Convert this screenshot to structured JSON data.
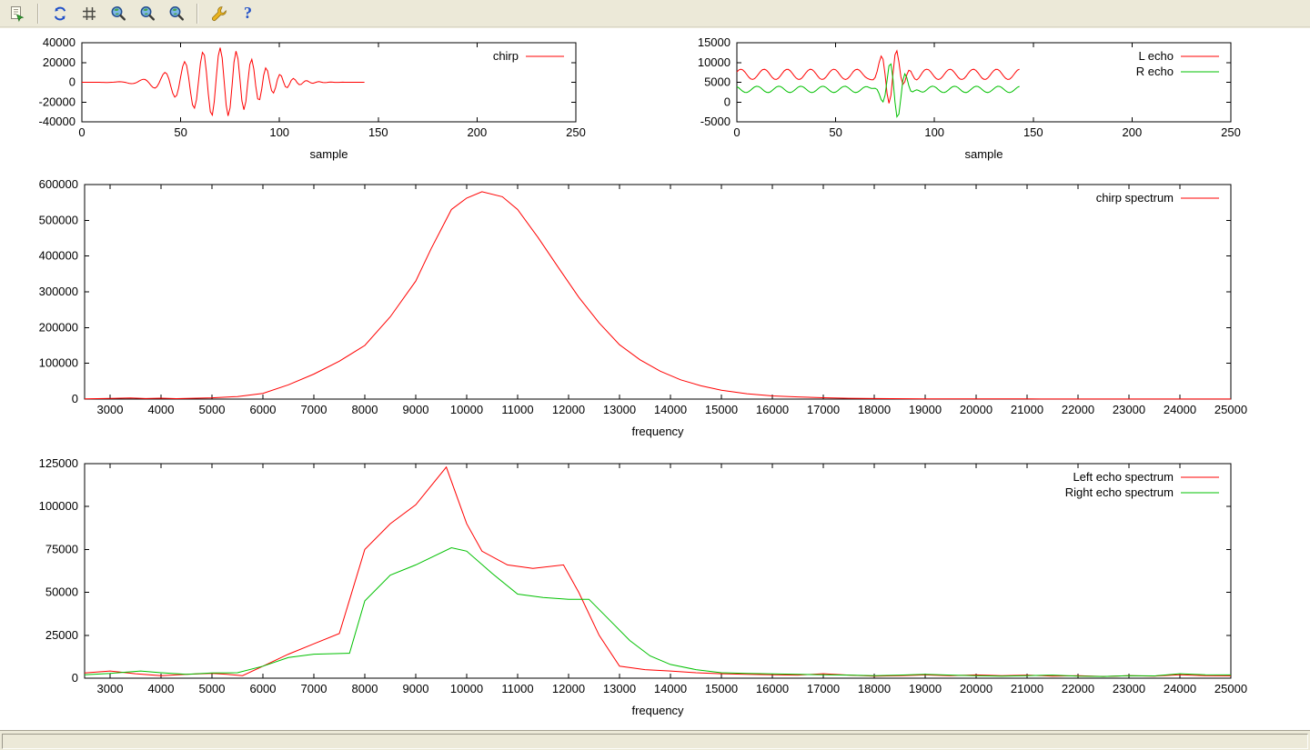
{
  "window": {
    "chrome_color": "#ece9d8",
    "plot_background": "#ffffff"
  },
  "toolbar": {
    "buttons": [
      {
        "icon": "copy-plot-icon"
      },
      {
        "icon": "replot-icon"
      },
      {
        "icon": "toggle-grid-icon"
      },
      {
        "icon": "zoom-previous-icon"
      },
      {
        "icon": "zoom-next-icon"
      },
      {
        "icon": "autoscale-icon"
      },
      {
        "icon": "configure-icon"
      },
      {
        "icon": "help-icon"
      }
    ]
  },
  "status_bar": {
    "text": ""
  },
  "chart_data": [
    {
      "id": "chirp-signal",
      "type": "line",
      "title": "",
      "xlabel": "sample",
      "ylabel": "",
      "xlim": [
        0,
        250
      ],
      "ylim": [
        -40000,
        40000
      ],
      "xticks": [
        0,
        50,
        100,
        150,
        200,
        250
      ],
      "yticks": [
        -40000,
        -20000,
        0,
        20000,
        40000
      ],
      "grid": false,
      "legend_position": "top-right-inside",
      "series": [
        {
          "name": "chirp",
          "color": "#ff0000",
          "generator": {
            "kind": "chirp",
            "n": 143,
            "amplitude": 35000,
            "center": 70,
            "width": 25,
            "freq_start": 0.06,
            "freq_end": 0.18
          }
        }
      ]
    },
    {
      "id": "echo-signals",
      "type": "line",
      "title": "",
      "xlabel": "sample",
      "ylabel": "",
      "xlim": [
        0,
        250
      ],
      "ylim": [
        -5000,
        15000
      ],
      "xticks": [
        0,
        50,
        100,
        150,
        200,
        250
      ],
      "yticks": [
        -5000,
        0,
        5000,
        10000,
        15000
      ],
      "grid": false,
      "legend_position": "top-right-inside",
      "series": [
        {
          "name": "L echo",
          "color": "#ff0000",
          "generator": {
            "kind": "echo",
            "n": 143,
            "base": 7000,
            "ripple_amp": 1300,
            "ripple_freq": 0.085,
            "ripple_phase": 0.5,
            "burst_amp": 7000,
            "burst_center": 79,
            "burst_width": 7,
            "burst_freq": 0.13,
            "burst_phase": 0.2
          }
        },
        {
          "name": "R echo",
          "color": "#00c000",
          "generator": {
            "kind": "echo",
            "n": 143,
            "base": 3200,
            "ripple_amp": 800,
            "ripple_freq": 0.09,
            "ripple_phase": 2.1,
            "burst_amp": 6800,
            "burst_center": 80,
            "burst_width": 7,
            "burst_freq": 0.13,
            "burst_phase": 3.6
          }
        }
      ]
    },
    {
      "id": "chirp-spectrum",
      "type": "line",
      "title": "",
      "xlabel": "frequency",
      "ylabel": "",
      "xlim": [
        2500,
        25000
      ],
      "ylim": [
        0,
        600000
      ],
      "xticks": [
        3000,
        4000,
        5000,
        6000,
        7000,
        8000,
        9000,
        10000,
        11000,
        12000,
        13000,
        14000,
        15000,
        16000,
        17000,
        18000,
        19000,
        20000,
        21000,
        22000,
        23000,
        24000,
        25000
      ],
      "yticks": [
        0,
        100000,
        200000,
        300000,
        400000,
        500000,
        600000
      ],
      "grid": false,
      "legend_position": "top-right-inside",
      "series": [
        {
          "name": "chirp spectrum",
          "color": "#ff0000",
          "points": {
            "x": [
              2500,
              3000,
              3400,
              3700,
              4000,
              4300,
              4600,
              5000,
              5500,
              6000,
              6500,
              7000,
              7500,
              8000,
              8500,
              9000,
              9300,
              9700,
              10000,
              10300,
              10700,
              11000,
              11400,
              11800,
              12200,
              12600,
              13000,
              13400,
              13800,
              14200,
              14600,
              15000,
              15500,
              16000,
              16500,
              17000,
              17500,
              18000,
              19000,
              20000,
              21000,
              22000,
              23000,
              24000,
              25000
            ],
            "y": [
              800,
              1800,
              3200,
              1600,
              2600,
              1200,
              2200,
              3500,
              7000,
              16000,
              40000,
              70000,
              106000,
              150000,
              230000,
              330000,
              420000,
              530000,
              562000,
              580000,
              566000,
              530000,
              452000,
              368000,
              285000,
              213000,
              152000,
              110000,
              78000,
              54000,
              37000,
              25000,
              15000,
              9000,
              6000,
              3800,
              2400,
              1500,
              800,
              500,
              400,
              350,
              300,
              250,
              200
            ]
          }
        }
      ]
    },
    {
      "id": "echo-spectra",
      "type": "line",
      "title": "",
      "xlabel": "frequency",
      "ylabel": "",
      "xlim": [
        2500,
        25000
      ],
      "ylim": [
        0,
        125000
      ],
      "xticks": [
        3000,
        4000,
        5000,
        6000,
        7000,
        8000,
        9000,
        10000,
        11000,
        12000,
        13000,
        14000,
        15000,
        16000,
        17000,
        18000,
        19000,
        20000,
        21000,
        22000,
        23000,
        24000,
        25000
      ],
      "yticks": [
        0,
        25000,
        50000,
        75000,
        100000,
        125000
      ],
      "grid": false,
      "legend_position": "top-right-inside",
      "series": [
        {
          "name": "Left echo spectrum",
          "color": "#ff0000",
          "points": {
            "x": [
              2500,
              3000,
              3500,
              4000,
              4500,
              5000,
              5300,
              5600,
              6000,
              6500,
              7000,
              7500,
              8000,
              8500,
              9000,
              9600,
              10000,
              10300,
              10800,
              11300,
              11900,
              12200,
              12600,
              13000,
              13500,
              14000,
              14500,
              15000,
              15500,
              16000,
              16500,
              17000,
              17500,
              18000,
              18500,
              19000,
              19500,
              20000,
              20500,
              21000,
              21500,
              22000,
              22500,
              23000,
              23500,
              24000,
              24500,
              25000
            ],
            "y": [
              3000,
              4200,
              2600,
              1500,
              2200,
              2800,
              2200,
              1500,
              7000,
              14000,
              20000,
              26000,
              75000,
              90000,
              101000,
              123000,
              90000,
              74000,
              66000,
              64000,
              66000,
              50000,
              25000,
              7000,
              5000,
              4200,
              3200,
              2600,
              2200,
              2000,
              1800,
              2600,
              1800,
              1200,
              1500,
              1900,
              1500,
              1900,
              1500,
              1800,
              1200,
              1500,
              1000,
              1500,
              1200,
              2000,
              1500,
              1400
            ]
          }
        },
        {
          "name": "Right echo spectrum",
          "color": "#00c000",
          "points": {
            "x": [
              2500,
              3000,
              3600,
              4000,
              4500,
              5000,
              5500,
              6000,
              6500,
              7000,
              7700,
              8000,
              8500,
              9000,
              9700,
              10000,
              10500,
              11000,
              11500,
              12000,
              12400,
              12800,
              13200,
              13600,
              14000,
              14500,
              15000,
              15500,
              16000,
              16500,
              17000,
              17500,
              18000,
              18500,
              19000,
              19500,
              20000,
              20500,
              21000,
              21500,
              22000,
              22500,
              23000,
              23500,
              24000,
              24500,
              25000
            ],
            "y": [
              2000,
              2800,
              4200,
              3200,
              2200,
              3000,
              3200,
              7000,
              12000,
              14000,
              14500,
              45000,
              60000,
              66000,
              76000,
              74000,
              61000,
              49000,
              47000,
              46000,
              46000,
              34000,
              22000,
              13000,
              8000,
              5000,
              3200,
              2800,
              2500,
              2200,
              2000,
              1800,
              1500,
              1800,
              2200,
              1800,
              1500,
              1200,
              1500,
              1800,
              1200,
              1000,
              1500,
              1300,
              2600,
              2000,
              1900
            ]
          }
        }
      ]
    }
  ]
}
